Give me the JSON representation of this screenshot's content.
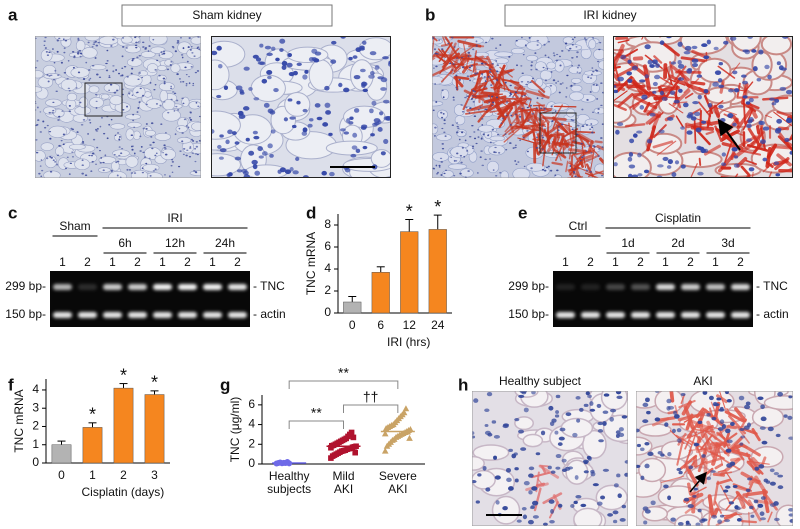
{
  "panels": [
    "a",
    "b",
    "c",
    "d",
    "e",
    "f",
    "g",
    "h"
  ],
  "micrographs": {
    "a_title": "Sham kidney",
    "b_title": "IRI kidney",
    "h_left": "Healthy subject",
    "h_right": "AKI"
  },
  "gels": [
    {
      "groups": [
        "Sham",
        "IRI"
      ],
      "subgroups": [
        "6h",
        "12h",
        "24h"
      ],
      "lanes": [
        "1",
        "2"
      ],
      "markers": [
        "299 bp-",
        "150 bp-"
      ],
      "bands": [
        "- TNC",
        "- actin"
      ]
    },
    {
      "groups": [
        "Ctrl",
        "Cisplatin"
      ],
      "subgroups": [
        "1d",
        "2d",
        "3d"
      ],
      "lanes": [
        "1",
        "2"
      ],
      "markers": [
        "299 bp-",
        "150 bp-"
      ],
      "bands": [
        "- TNC",
        "- actin"
      ]
    }
  ],
  "chart_data": [
    {
      "type": "bar",
      "ylabel": "TNC mRNA",
      "xlabel": "IRI (hrs)",
      "categories": [
        "0",
        "6",
        "12",
        "24"
      ],
      "values": [
        1.0,
        3.7,
        7.4,
        7.6
      ],
      "errors": [
        0.5,
        0.5,
        1.1,
        1.3
      ],
      "significance": [
        null,
        null,
        "*",
        "*"
      ],
      "colors": [
        "#b3b3b3",
        "#f5861f",
        "#f5861f",
        "#f5861f"
      ],
      "ylim": [
        0,
        9
      ],
      "yticks": [
        0,
        2,
        4,
        6,
        8
      ]
    },
    {
      "type": "bar",
      "ylabel": "TNC mRNA",
      "xlabel": "Cisplatin (days)",
      "categories": [
        "0",
        "1",
        "2",
        "3"
      ],
      "values": [
        1.0,
        1.95,
        4.1,
        3.75
      ],
      "errors": [
        0.2,
        0.25,
        0.25,
        0.2
      ],
      "significance": [
        null,
        "*",
        "*",
        "*"
      ],
      "colors": [
        "#b3b3b3",
        "#f5861f",
        "#f5861f",
        "#f5861f"
      ],
      "ylim": [
        0,
        4.6
      ],
      "yticks": [
        0,
        1,
        2,
        3,
        4
      ]
    },
    {
      "type": "dotplot",
      "ylabel": "TNC (μg/ml)",
      "categories": [
        [
          "Healthy",
          "subjects"
        ],
        [
          "Mild",
          "AKI"
        ],
        [
          "Severe",
          "AKI"
        ]
      ],
      "groups": [
        {
          "color": "#6f6ae8",
          "marker": "circle",
          "mean": 0.1,
          "values": [
            0.05,
            0.1,
            0.15,
            0.08,
            0.12,
            0.1,
            0.2,
            0.06
          ]
        },
        {
          "color": "#b0122e",
          "marker": "square",
          "mean": 1.8,
          "values": [
            0.6,
            0.8,
            0.9,
            1.0,
            1.1,
            1.2,
            1.3,
            1.35,
            1.4,
            1.5,
            1.55,
            1.6,
            1.7,
            1.75,
            1.8,
            1.85,
            1.9,
            2.0,
            2.1,
            2.2,
            2.3,
            2.4,
            2.5,
            2.6,
            2.8,
            3.0,
            3.2,
            2.7,
            1.15,
            1.65
          ]
        },
        {
          "color": "#c9a366",
          "marker": "triangle",
          "mean": 3.3,
          "values": [
            1.3,
            1.8,
            2.0,
            2.2,
            2.4,
            2.5,
            2.7,
            2.8,
            2.9,
            3.0,
            3.1,
            3.2,
            3.3,
            3.4,
            3.5,
            3.6,
            3.7,
            3.8,
            3.9,
            4.0,
            4.2,
            4.4,
            4.6,
            4.8,
            5.0,
            5.2,
            5.6,
            3.25,
            2.6,
            3.05
          ]
        }
      ],
      "comparisons": [
        "**",
        "**",
        "††"
      ],
      "ylim": [
        0,
        7
      ],
      "yticks": [
        0,
        2,
        4,
        6
      ]
    }
  ]
}
